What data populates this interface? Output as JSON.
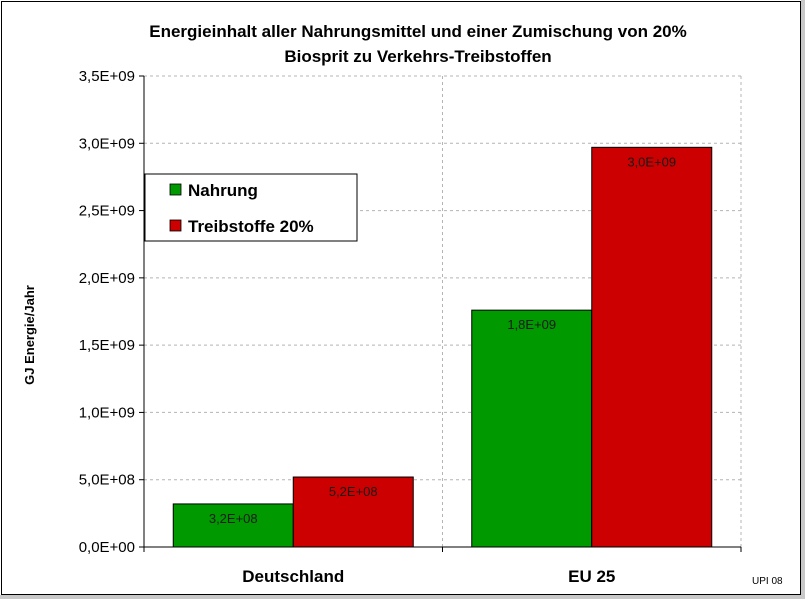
{
  "chart_data": {
    "type": "bar",
    "title": "Energieinhalt aller Nahrungsmittel und einer Zumischung von 20%",
    "subtitle": "Biosprit zu Verkehrs-Treibstoffen",
    "ylabel": "GJ Energie/Jahr",
    "xlabel": "",
    "categories": [
      "Deutschland",
      "EU 25"
    ],
    "series": [
      {
        "name": "Nahrung",
        "color": "#009900",
        "values": [
          320000000,
          1760000000
        ],
        "labels": [
          "3,2E+08",
          "1,8E+09"
        ]
      },
      {
        "name": "Treibstoffe 20%",
        "color": "#cc0000",
        "values": [
          520000000,
          2970000000
        ],
        "labels": [
          "5,2E+08",
          "3,0E+09"
        ]
      }
    ],
    "ylim": [
      0,
      3500000000
    ],
    "yticks": [
      {
        "value": 0,
        "label": "0,0E+00"
      },
      {
        "value": 500000000,
        "label": "5,0E+08"
      },
      {
        "value": 1000000000,
        "label": "1,0E+09"
      },
      {
        "value": 1500000000,
        "label": "1,5E+09"
      },
      {
        "value": 2000000000,
        "label": "2,0E+09"
      },
      {
        "value": 2500000000,
        "label": "2,5E+09"
      },
      {
        "value": 3000000000,
        "label": "3,0E+09"
      },
      {
        "value": 3500000000,
        "label": "3,5E+09"
      }
    ],
    "grid": true,
    "legend_position": "top-left"
  },
  "credit": "UPI 08"
}
